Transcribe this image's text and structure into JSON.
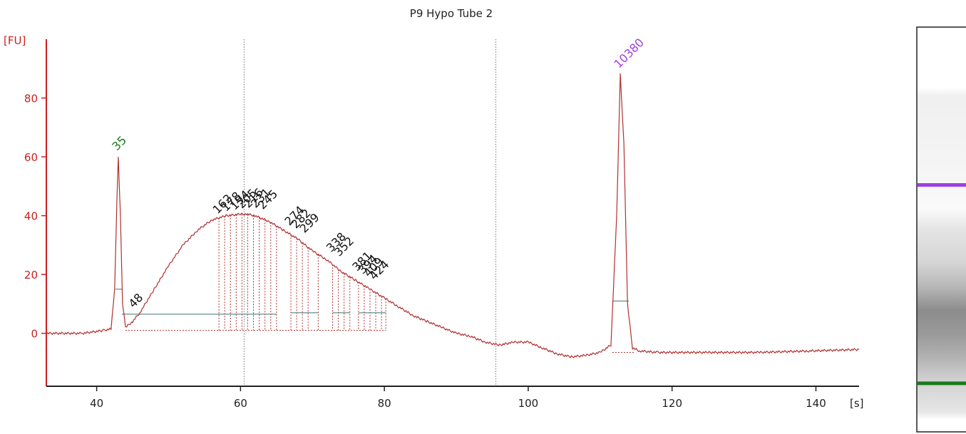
{
  "colors": {
    "axis": "#cc1f1f",
    "trace": "#b03030",
    "baseline": "#3f7070",
    "marker_lower": "#1a7a1a",
    "marker_upper": "#a040e0",
    "label": "#111111"
  },
  "chart_data": {
    "type": "line",
    "title": "P9 Hypo Tube 2",
    "ylabel": "[FU]",
    "xlabel": "[s]",
    "xlim": [
      33,
      146
    ],
    "ylim": [
      -18,
      100
    ],
    "x_ticks": [
      40,
      60,
      80,
      100,
      120,
      140
    ],
    "y_ticks": [
      0,
      20,
      40,
      60,
      80
    ],
    "grid": false,
    "vertical_markers": [
      60.5,
      95.5
    ],
    "series": [
      {
        "x": [
          33,
          38,
          41,
          42,
          42.5,
          42.8,
          43.0,
          43.3,
          43.6,
          44,
          45,
          46,
          48,
          50,
          52,
          54,
          56,
          58,
          60,
          61,
          62,
          64,
          66,
          68,
          70,
          72,
          74,
          76,
          78,
          80,
          82,
          84,
          86,
          88,
          90,
          92,
          94,
          96,
          98,
          100,
          102,
          104,
          106,
          108,
          110,
          111.5,
          112.3,
          112.8,
          113.3,
          113.8,
          114.5,
          115.5,
          118,
          125,
          132,
          139,
          146
        ],
        "y": [
          0,
          0,
          1,
          1.5,
          15,
          45,
          60,
          40,
          10,
          2,
          4,
          7,
          15,
          23,
          30,
          35,
          38.5,
          40,
          40.5,
          40.5,
          40,
          38,
          35,
          32,
          28,
          25,
          21,
          18,
          15,
          12,
          9,
          6,
          4,
          2,
          0,
          -1,
          -3,
          -4,
          -3,
          -3,
          -5,
          -7,
          -8,
          -7.5,
          -6.5,
          -4,
          40,
          88,
          65,
          10,
          -5,
          -6,
          -6.5,
          -6.5,
          -6.5,
          -6,
          -5.5
        ]
      }
    ],
    "lower_marker": {
      "x": 43.0,
      "y": 60,
      "label": "35"
    },
    "upper_marker": {
      "x": 112.8,
      "y": 88,
      "label": "10380"
    },
    "labeled_peaks": [
      {
        "label": "48",
        "x": 45.3,
        "y": 6.5
      },
      {
        "label": "162",
        "x": 57.0,
        "y": 38.5
      },
      {
        "label": "178",
        "x": 58.2,
        "y": 39.3
      },
      {
        "label": "194",
        "x": 59.4,
        "y": 39.8
      },
      {
        "label": "205",
        "x": 60.4,
        "y": 40.3
      },
      {
        "label": "216",
        "x": 61.3,
        "y": 40.5
      },
      {
        "label": "231",
        "x": 62.3,
        "y": 40.5
      },
      {
        "label": "245",
        "x": 63.3,
        "y": 40.0
      },
      {
        "label": "274",
        "x": 67.0,
        "y": 34.5
      },
      {
        "label": "282",
        "x": 67.9,
        "y": 33.5
      },
      {
        "label": "299",
        "x": 69.1,
        "y": 32.0
      },
      {
        "label": "338",
        "x": 72.8,
        "y": 25.5
      },
      {
        "label": "352",
        "x": 73.9,
        "y": 24.0
      },
      {
        "label": "381",
        "x": 76.4,
        "y": 19.0
      },
      {
        "label": "394",
        "x": 77.2,
        "y": 18.0
      },
      {
        "label": "409",
        "x": 78.0,
        "y": 17.0
      },
      {
        "label": "424",
        "x": 78.8,
        "y": 16.0
      }
    ],
    "fill_lines_x": [
      57.0,
      57.8,
      58.6,
      59.4,
      60.2,
      61.0,
      61.8,
      62.6,
      63.4,
      64.2,
      65.0,
      67.0,
      67.8,
      68.6,
      69.4,
      70.8,
      72.8,
      73.6,
      74.4,
      75.2,
      76.4,
      77.2,
      78.0,
      78.8,
      79.6,
      80.2
    ],
    "baseline_segments": [
      {
        "x1": 43.5,
        "x2": 57.0,
        "y": 6.5
      },
      {
        "x1": 57.0,
        "x2": 65.0,
        "y": 6.5
      },
      {
        "x1": 67.0,
        "x2": 70.8,
        "y": 7.0
      },
      {
        "x1": 72.8,
        "x2": 75.2,
        "y": 7.0
      },
      {
        "x1": 76.4,
        "x2": 80.2,
        "y": 7.0
      },
      {
        "x1": 111.7,
        "x2": 114.0,
        "y": 11.0
      }
    ],
    "gel": {
      "upper_band_fraction": 0.39,
      "lower_band_fraction": 0.88
    }
  }
}
